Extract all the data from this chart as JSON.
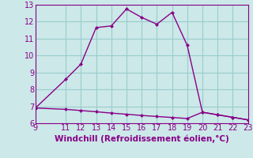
{
  "title": "Windchill (Refroidissement éolien,°C)",
  "background_color": "#cce8e8",
  "line_color": "#880088",
  "grid_color": "#99cccc",
  "x_line1": [
    9,
    11,
    12,
    13,
    14,
    15,
    16,
    17,
    18,
    19,
    20,
    21,
    22,
    23
  ],
  "y_line1": [
    6.9,
    8.6,
    9.5,
    11.65,
    11.75,
    12.75,
    12.25,
    11.85,
    12.55,
    10.6,
    6.65,
    6.5,
    6.35,
    6.2
  ],
  "x_line2": [
    9,
    11,
    12,
    13,
    14,
    15,
    16,
    17,
    18,
    19,
    20,
    21,
    22,
    23
  ],
  "y_line2": [
    6.9,
    6.82,
    6.75,
    6.68,
    6.6,
    6.53,
    6.46,
    6.4,
    6.34,
    6.28,
    6.65,
    6.5,
    6.35,
    6.2
  ],
  "xlim": [
    9,
    23
  ],
  "ylim": [
    6,
    13
  ],
  "xticks": [
    9,
    11,
    12,
    13,
    14,
    15,
    16,
    17,
    18,
    19,
    20,
    21,
    22,
    23
  ],
  "yticks": [
    6,
    7,
    8,
    9,
    10,
    11,
    12,
    13
  ],
  "xlabel_fontsize": 7.5,
  "tick_fontsize": 7
}
